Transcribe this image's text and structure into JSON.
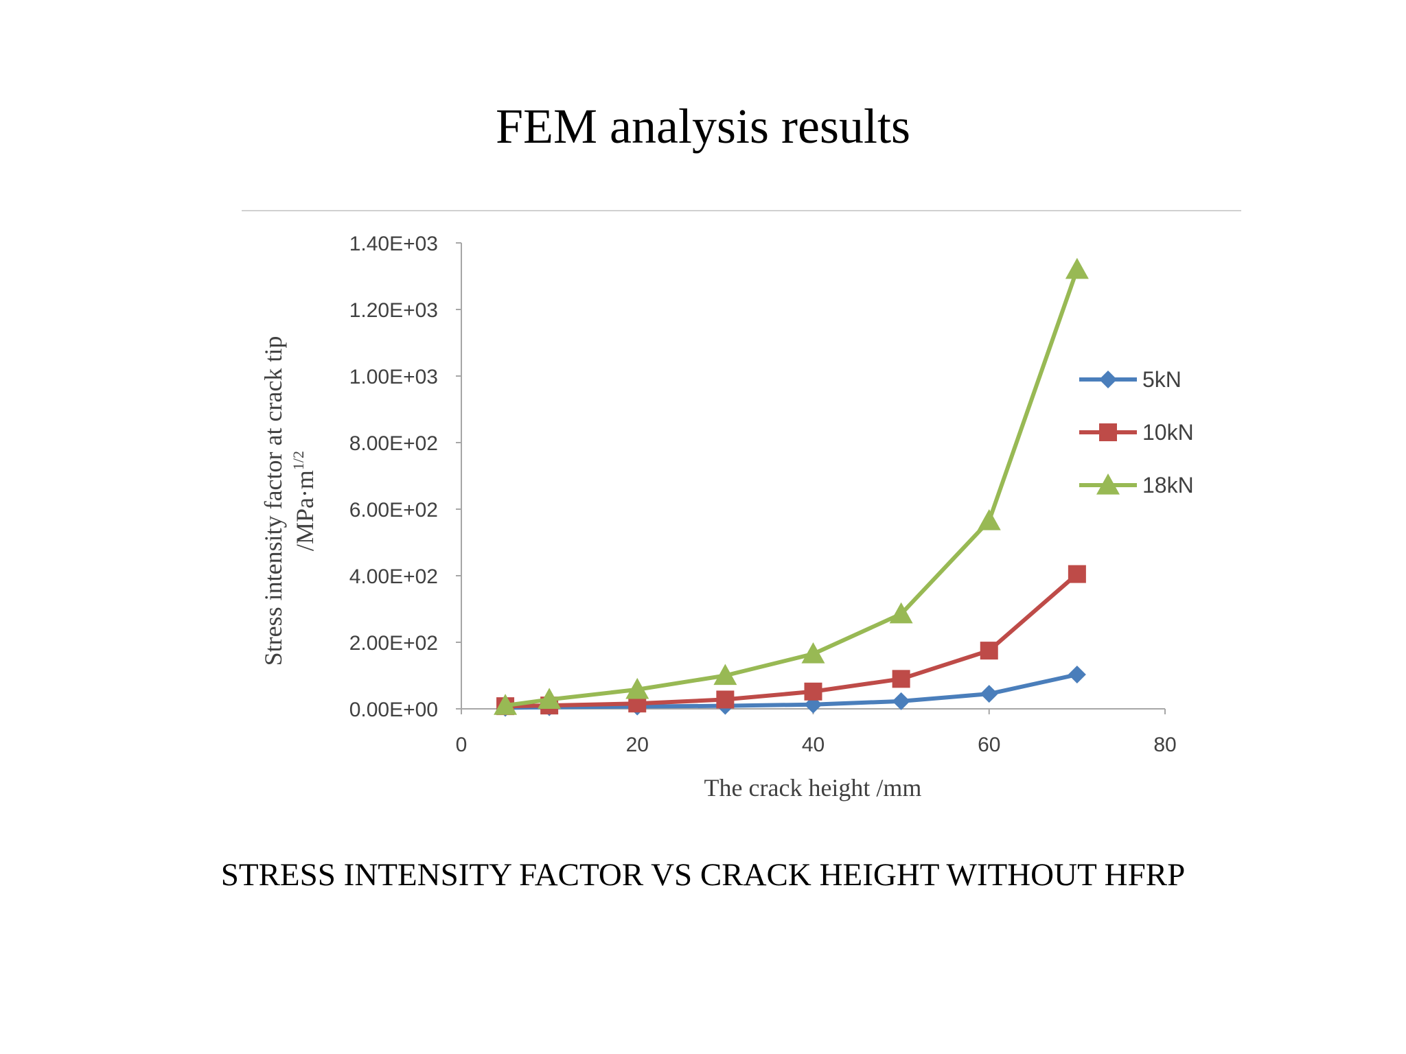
{
  "slide": {
    "title": "FEM analysis results",
    "caption": "STRESS INTENSITY FACTOR VS CRACK HEIGHT WITHOUT HFRP"
  },
  "chart_data": {
    "type": "line",
    "xlabel": "The crack height /mm",
    "ylabel_line1": "Stress intensity factor at crack tip",
    "ylabel_line2": "/MPa·m",
    "ylabel_sup": "1/2",
    "xlim": [
      0,
      80
    ],
    "ylim": [
      0,
      1400
    ],
    "x_ticks": [
      0,
      20,
      40,
      60,
      80
    ],
    "x_tick_labels": [
      "0",
      "20",
      "40",
      "60",
      "80"
    ],
    "y_ticks": [
      0,
      200,
      400,
      600,
      800,
      1000,
      1200,
      1400
    ],
    "y_tick_labels": [
      "0.00E+00",
      "2.00E+02",
      "4.00E+02",
      "6.00E+02",
      "8.00E+02",
      "1.00E+03",
      "1.20E+03",
      "1.40E+03"
    ],
    "grid": false,
    "legend_position": "right",
    "x": [
      5,
      10,
      20,
      30,
      40,
      50,
      60,
      70
    ],
    "series": [
      {
        "name": "5kN",
        "marker": "diamond",
        "color": "#4a7ebb",
        "values": [
          3,
          5,
          7,
          9,
          13,
          23,
          45,
          103
        ]
      },
      {
        "name": "10kN",
        "marker": "square",
        "color": "#be4b48",
        "values": [
          8,
          10,
          16,
          28,
          52,
          90,
          175,
          405
        ]
      },
      {
        "name": "18kN",
        "marker": "triangle",
        "color": "#98b954",
        "values": [
          10,
          28,
          58,
          100,
          165,
          285,
          565,
          1320
        ]
      }
    ]
  }
}
